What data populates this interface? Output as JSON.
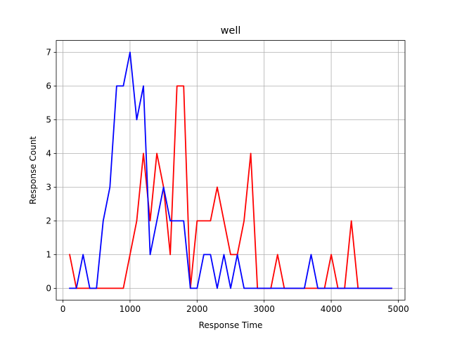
{
  "chart_data": {
    "type": "line",
    "title": "well",
    "xlabel": "Response Time",
    "ylabel": "Response Count",
    "xlim": [
      -100,
      5100
    ],
    "ylim": [
      -0.35,
      7.35
    ],
    "xticks": [
      0,
      1000,
      2000,
      3000,
      4000,
      5000
    ],
    "yticks": [
      0,
      1,
      2,
      3,
      4,
      5,
      6,
      7
    ],
    "grid": true,
    "legend": "none",
    "series": [
      {
        "color": "#ff0000",
        "x": [
          100,
          200,
          300,
          400,
          500,
          600,
          700,
          800,
          900,
          1000,
          1100,
          1200,
          1300,
          1400,
          1500,
          1600,
          1700,
          1800,
          1900,
          2000,
          2100,
          2200,
          2300,
          2400,
          2500,
          2600,
          2700,
          2800,
          2900,
          3000,
          3100,
          3200,
          3300,
          3400,
          3500,
          3600,
          3700,
          3800,
          3900,
          4000,
          4100,
          4200,
          4300,
          4400,
          4500,
          4600,
          4700,
          4800,
          4900
        ],
        "y": [
          1,
          0,
          0,
          0,
          0,
          0,
          0,
          0,
          0,
          1,
          2,
          4,
          2,
          4,
          3,
          1,
          6,
          6,
          0,
          2,
          2,
          2,
          3,
          2,
          1,
          1,
          2,
          4,
          0,
          0,
          0,
          1,
          0,
          0,
          0,
          0,
          0,
          0,
          0,
          1,
          0,
          0,
          2,
          0,
          0,
          0,
          0,
          0,
          0
        ]
      },
      {
        "color": "#0000ff",
        "x": [
          100,
          200,
          300,
          400,
          500,
          600,
          700,
          800,
          900,
          1000,
          1100,
          1200,
          1300,
          1400,
          1500,
          1600,
          1700,
          1800,
          1900,
          2000,
          2100,
          2200,
          2300,
          2400,
          2500,
          2600,
          2700,
          2800,
          2900,
          3000,
          3100,
          3200,
          3300,
          3400,
          3500,
          3600,
          3700,
          3800,
          3900,
          4000,
          4100,
          4200,
          4300,
          4400,
          4500,
          4600,
          4700,
          4800,
          4900
        ],
        "y": [
          0,
          0,
          1,
          0,
          0,
          2,
          3,
          6,
          6,
          7,
          5,
          6,
          1,
          2,
          3,
          2,
          2,
          2,
          0,
          0,
          1,
          1,
          0,
          1,
          0,
          1,
          0,
          0,
          0,
          0,
          0,
          0,
          0,
          0,
          0,
          0,
          1,
          0,
          0,
          0,
          0,
          0,
          0,
          0,
          0,
          0,
          0,
          0,
          0
        ]
      }
    ]
  }
}
